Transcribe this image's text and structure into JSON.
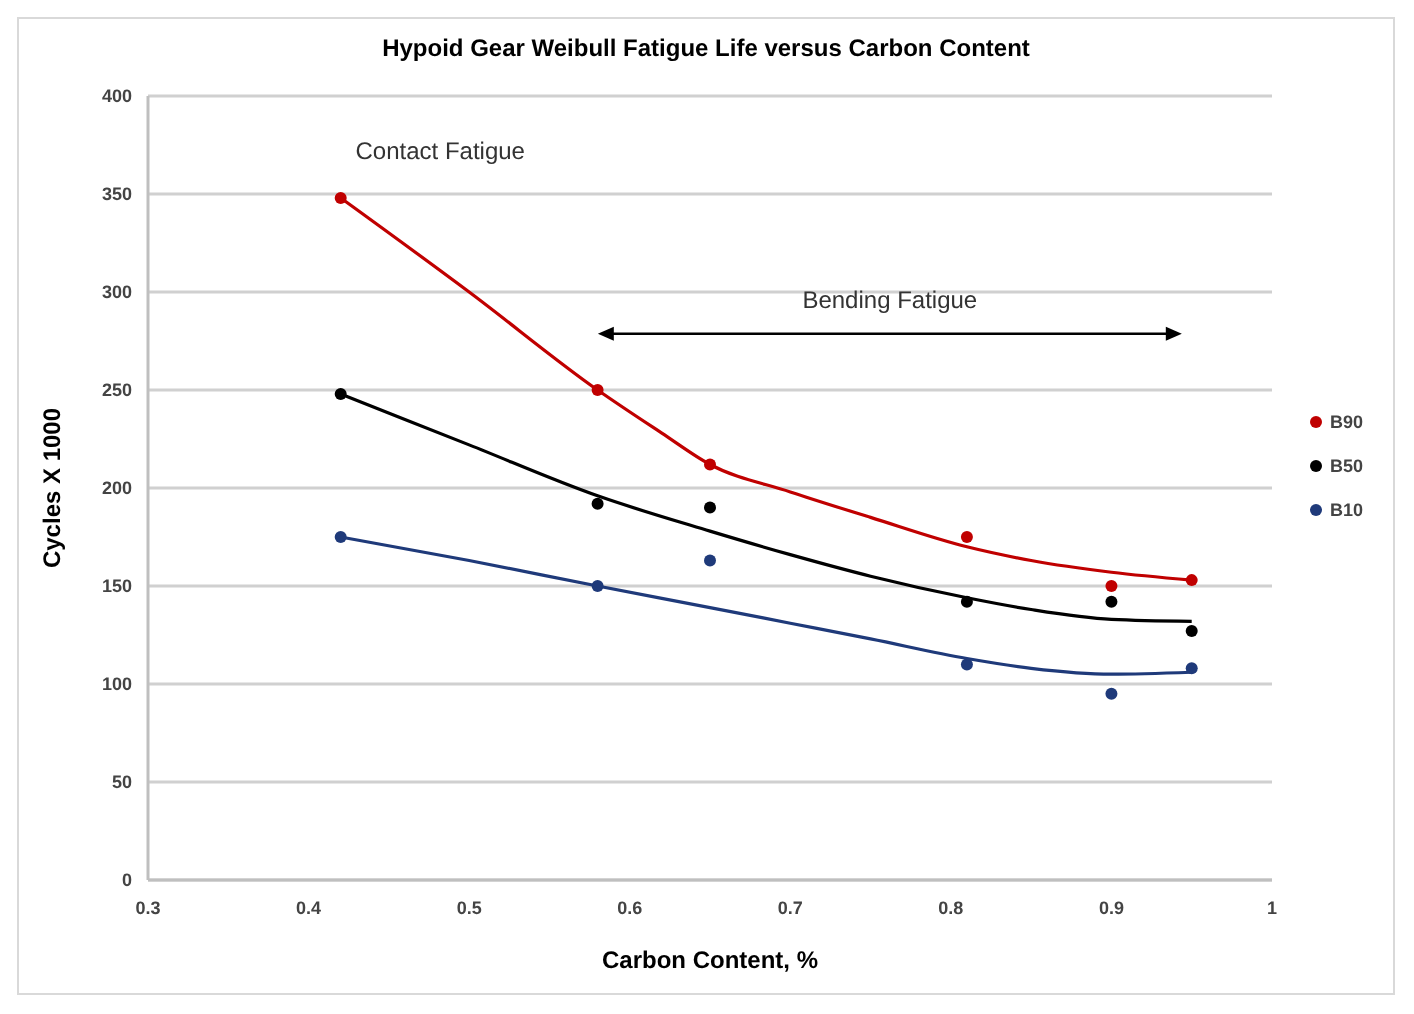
{
  "chart_data": {
    "type": "scatter",
    "title": "Hypoid Gear Weibull Fatigue Life versus Carbon Content",
    "xlabel": "Carbon Content, %",
    "ylabel": "Cycles X 1000",
    "xlim": [
      0.3,
      1
    ],
    "xticks": [
      0.3,
      0.4,
      0.5,
      0.6,
      0.7,
      0.8,
      0.9,
      1
    ],
    "ylim": [
      0,
      400
    ],
    "yticks": [
      0,
      50,
      100,
      150,
      200,
      250,
      300,
      350,
      400
    ],
    "grid": "y",
    "legend": "right",
    "annotations": [
      "Contact Fatigue",
      "Bending Fatigue"
    ],
    "series": [
      {
        "name": "B90",
        "marker": "circle",
        "color": "#c00000",
        "x": [
          0.42,
          0.58,
          0.65,
          0.81,
          0.9,
          0.95
        ],
        "values": [
          348,
          250,
          212,
          175,
          150,
          153
        ]
      },
      {
        "name": "B50",
        "marker": "circle",
        "color": "#000000",
        "x": [
          0.42,
          0.58,
          0.65,
          0.81,
          0.9,
          0.95
        ],
        "values": [
          248,
          192,
          190,
          142,
          142,
          127
        ]
      },
      {
        "name": "B10",
        "marker": "circle",
        "color": "#1f3a7a",
        "x": [
          0.42,
          0.58,
          0.65,
          0.81,
          0.9,
          0.95
        ],
        "values": [
          175,
          150,
          163,
          110,
          95,
          108
        ]
      },
      {
        "type": "line",
        "marker": "none",
        "color": "#c00000",
        "x": [
          0.42,
          0.5,
          0.58,
          0.62,
          0.65,
          0.7,
          0.75,
          0.81,
          0.85,
          0.9,
          0.95
        ],
        "values": [
          348,
          300,
          250,
          228,
          212,
          198,
          185,
          170,
          163,
          157,
          153
        ]
      },
      {
        "type": "line",
        "marker": "none",
        "color": "#000000",
        "x": [
          0.42,
          0.5,
          0.58,
          0.65,
          0.7,
          0.75,
          0.81,
          0.85,
          0.9,
          0.95
        ],
        "values": [
          248,
          222,
          196,
          178,
          166,
          155,
          144,
          138,
          133,
          132
        ]
      },
      {
        "type": "line",
        "marker": "none",
        "color": "#1f3a7a",
        "x": [
          0.42,
          0.5,
          0.58,
          0.65,
          0.7,
          0.75,
          0.81,
          0.85,
          0.9,
          0.95
        ],
        "values": [
          175,
          163,
          150,
          139,
          131,
          123,
          113,
          108,
          105,
          106
        ]
      }
    ]
  }
}
